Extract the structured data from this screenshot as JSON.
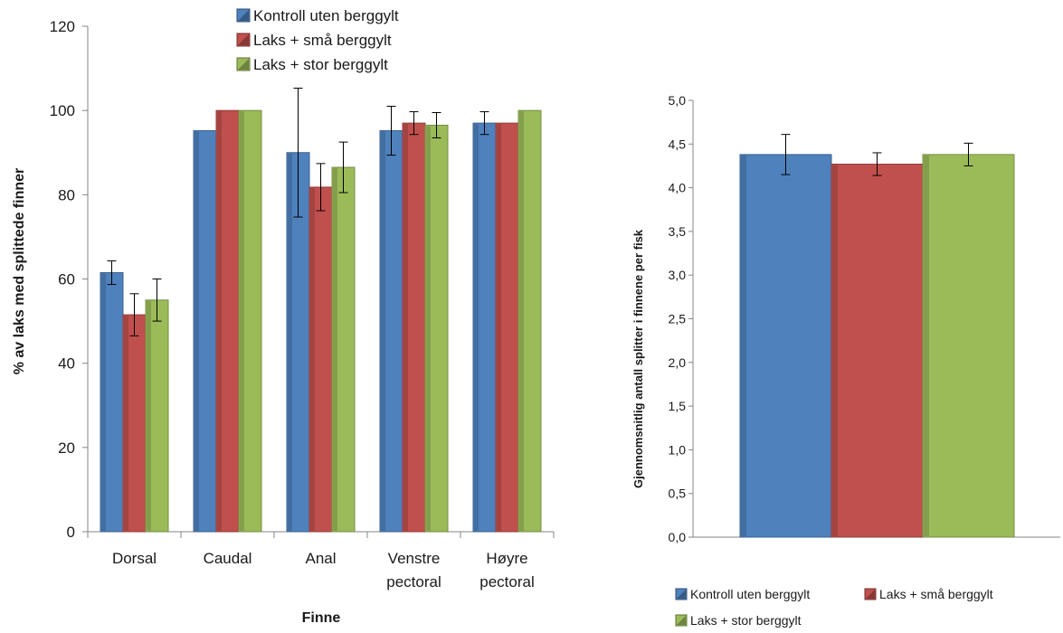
{
  "chart_data": [
    {
      "type": "bar",
      "xlabel": "Finne",
      "ylabel": "% av laks med splittede finner",
      "ylim": [
        0,
        120
      ],
      "yticks": [
        "0",
        "20",
        "40",
        "60",
        "80",
        "100",
        "120"
      ],
      "categories": [
        [
          "Dorsal"
        ],
        [
          "Caudal"
        ],
        [
          "Anal"
        ],
        [
          "Venstre",
          "pectoral"
        ],
        [
          "Høyre",
          "pectoral"
        ]
      ],
      "legend_position": "top",
      "series": [
        {
          "name": "Kontroll uten berggylt",
          "color": "#4f81bd",
          "values": [
            61.5,
            95.2,
            90.0,
            95.2,
            97.0
          ],
          "errors": [
            2.8,
            0.0,
            15.3,
            5.8,
            2.7
          ]
        },
        {
          "name": "Laks + små berggylt",
          "color": "#c0504d",
          "values": [
            51.5,
            100.0,
            81.8,
            97.0,
            97.0
          ],
          "errors": [
            5.0,
            0.0,
            5.6,
            2.7,
            0.0
          ]
        },
        {
          "name": "Laks + stor berggylt",
          "color": "#9bbb59",
          "values": [
            55.0,
            100.0,
            86.5,
            96.5,
            100.0
          ],
          "errors": [
            5.0,
            0.0,
            6.0,
            3.0,
            0.0
          ]
        }
      ]
    },
    {
      "type": "bar",
      "xlabel": "",
      "ylabel": "Gjennomsnitlig antall splitter i finnene per fisk",
      "ylim": [
        0,
        5
      ],
      "yticks": [
        "0,0",
        "0,5",
        "1,0",
        "1,5",
        "2,0",
        "2,5",
        "3,0",
        "3,5",
        "4,0",
        "4,5",
        "5,0"
      ],
      "categories": [
        ""
      ],
      "legend_position": "bottom",
      "series": [
        {
          "name": "Kontroll uten berggylt",
          "color": "#4f81bd",
          "values": [
            4.38
          ],
          "errors": [
            0.23
          ]
        },
        {
          "name": "Laks + små berggylt",
          "color": "#c0504d",
          "values": [
            4.27
          ],
          "errors": [
            0.13
          ]
        },
        {
          "name": "Laks + stor berggylt",
          "color": "#9bbb59",
          "values": [
            4.38
          ],
          "errors": [
            0.13
          ]
        }
      ]
    }
  ]
}
